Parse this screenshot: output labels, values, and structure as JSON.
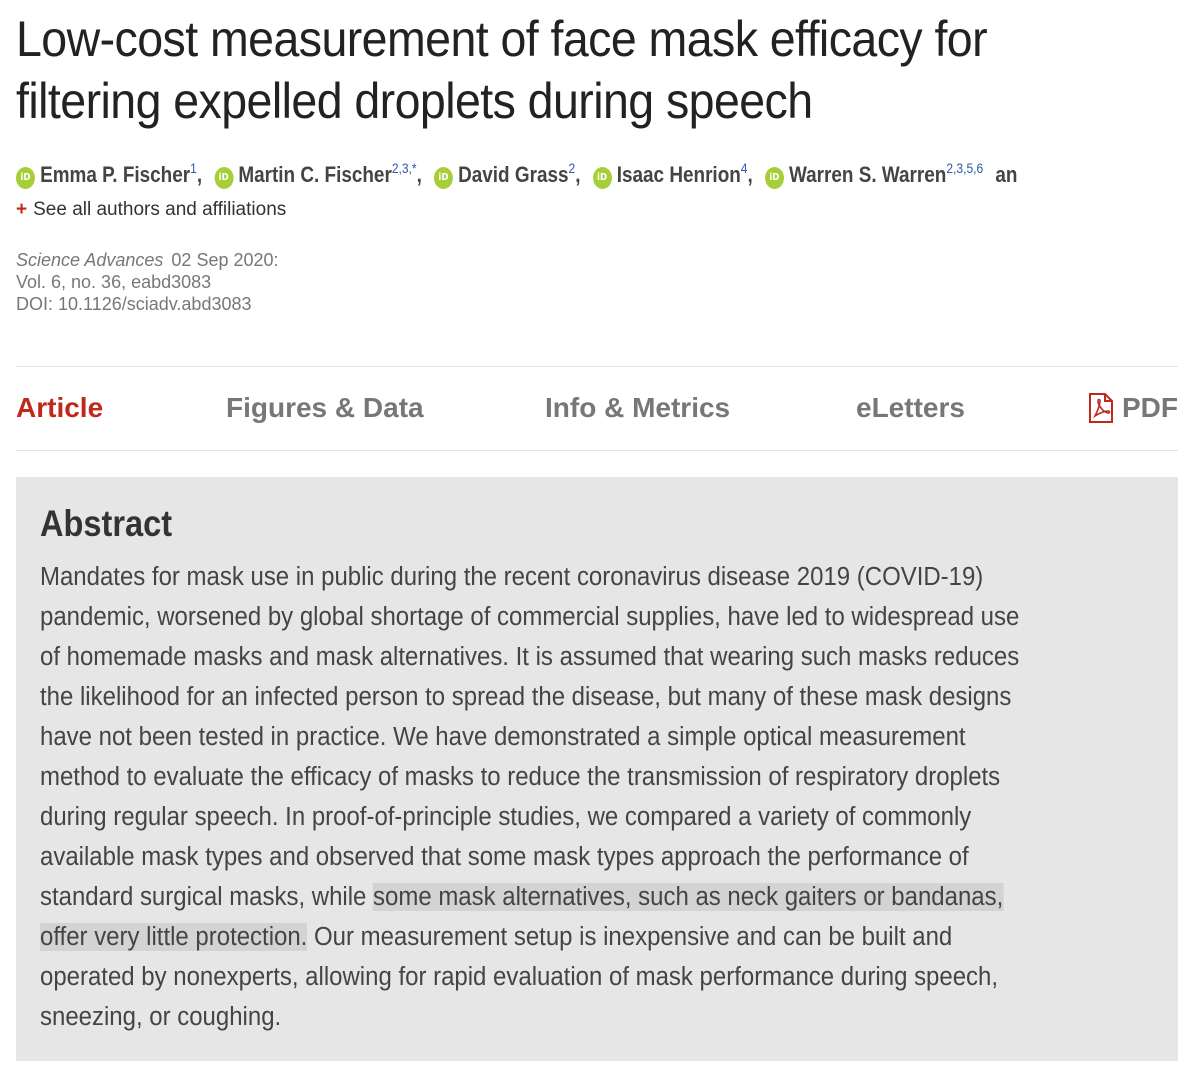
{
  "article": {
    "title_line1": "Low-cost measurement of face mask efficacy for",
    "title_line2": "filtering expelled droplets during speech",
    "authors": [
      {
        "name": "Emma P. Fischer",
        "aff": "1",
        "sep": ","
      },
      {
        "name": "Martin C. Fischer",
        "aff": "2,3,*",
        "sep": ","
      },
      {
        "name": "David Grass",
        "aff": "2",
        "sep": ","
      },
      {
        "name": "Isaac Henrion",
        "aff": "4",
        "sep": ","
      },
      {
        "name": "Warren S. Warren",
        "aff": "2,3,5,6",
        "sep": ""
      }
    ],
    "authors_tail": "and Eric West…",
    "orcid_label": "iD",
    "see_all_plus": "+",
    "see_all_label": "See all authors and affiliations",
    "journal": "Science Advances",
    "date": "02 Sep 2020:",
    "volume": "Vol. 6, no. 36, eabd3083",
    "doi": "DOI: 10.1126/sciadv.abd3083"
  },
  "tabs": {
    "article": "Article",
    "figures": "Figures & Data",
    "info": "Info & Metrics",
    "eletters": "eLetters",
    "pdf": "PDF"
  },
  "abstract": {
    "heading": "Abstract",
    "lines": [
      "Mandates for mask use in public during the recent coronavirus disease 2019 (COVID-19)",
      "pandemic, worsened by global shortage of commercial supplies, have led to widespread use",
      "of homemade masks and mask alternatives. It is assumed that wearing such masks reduces",
      "the likelihood for an infected person to spread the disease, but many of these mask designs",
      "have not been tested in practice. We have demonstrated a simple optical measurement",
      "method to evaluate the efficacy of masks to reduce the transmission of respiratory droplets",
      "during regular speech. In proof-of-principle studies, we compared a variety of commonly",
      "available mask types and observed that some mask types approach the performance of"
    ],
    "line9_pre": "standard surgical masks, while ",
    "line9_hl": "some mask alternatives, such as neck gaiters or bandanas,",
    "line10_hl": "offer very little protection.",
    "line10_post": " Our measurement setup is inexpensive and can be built and",
    "line11": "operated by nonexperts, allowing for rapid evaluation of mask performance during speech,",
    "line12": "sneezing, or coughing."
  },
  "colors": {
    "accent": "#c0281b",
    "orcid": "#a6ce39",
    "highlight": "#d3d3d3",
    "abstract_bg": "#e6e6e6"
  }
}
